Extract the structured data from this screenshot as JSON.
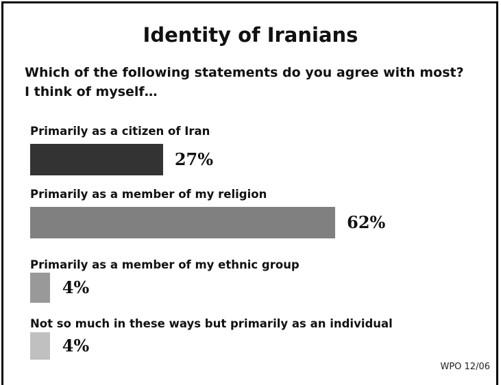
{
  "chart_data": {
    "type": "bar",
    "orientation": "horizontal",
    "title": "Identity of Iranians",
    "question_lines": [
      "Which of the following statements do you agree with most?",
      "I think of myself…"
    ],
    "categories": [
      "Primarily as a citizen of Iran",
      "Primarily as a member of my religion",
      "Primarily as a member of my ethnic group",
      "Not so much in these ways but primarily as an individual"
    ],
    "values": [
      27,
      62,
      4,
      4
    ],
    "value_labels": [
      "27%",
      "62%",
      "4%",
      "4%"
    ],
    "colors": [
      "#333333",
      "#808080",
      "#999999",
      "#c0c0c0"
    ],
    "unit": "%",
    "grid": false,
    "legend": "none"
  },
  "source_note": "WPO 12/06"
}
